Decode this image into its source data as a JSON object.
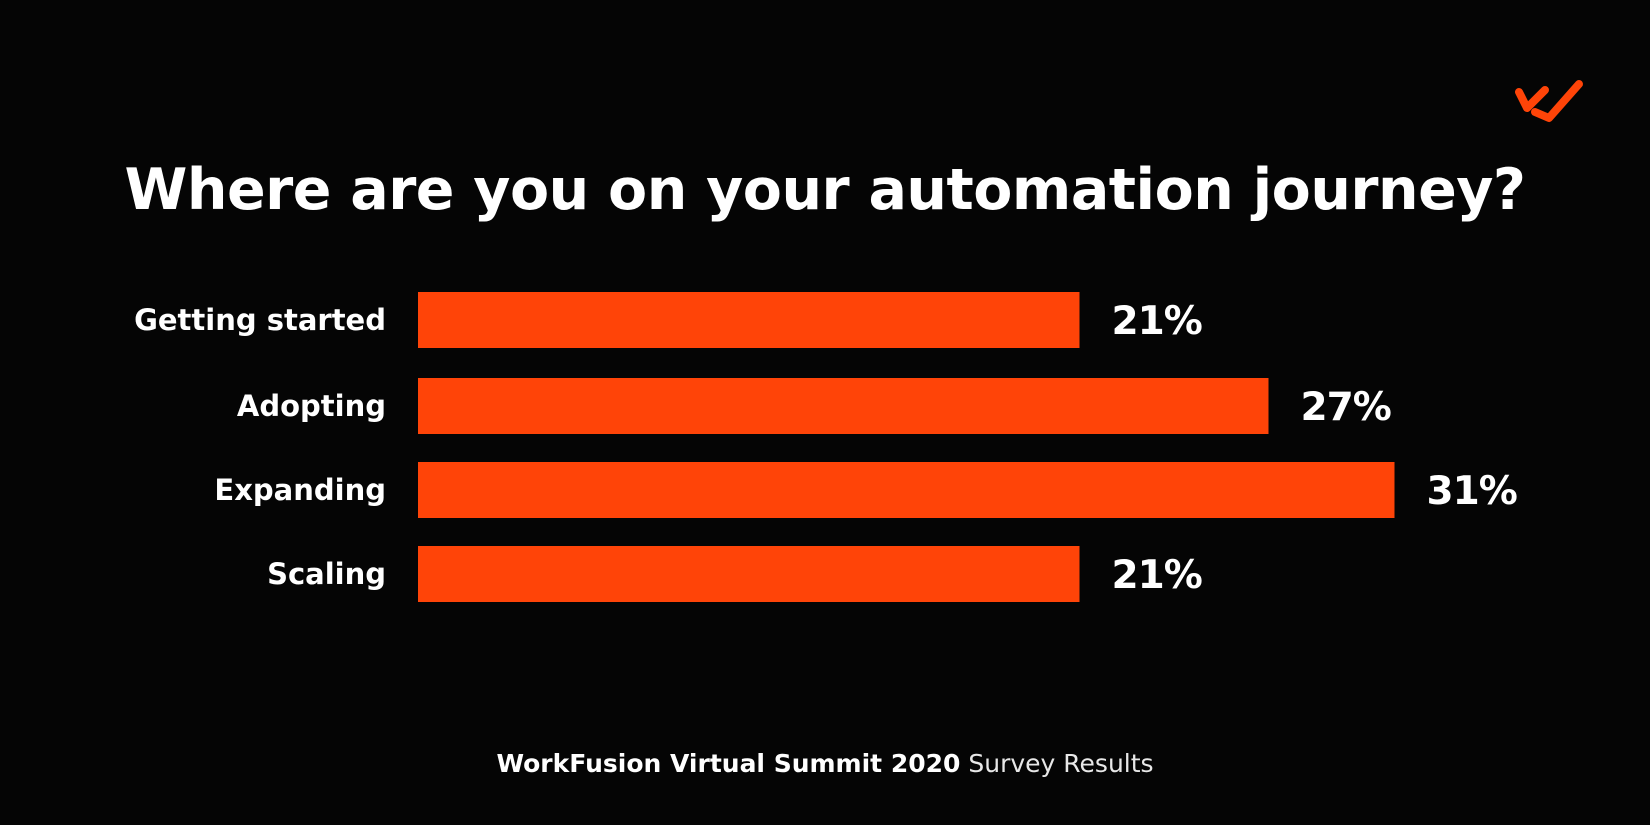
{
  "brand": {
    "logo_icon": "workfusion-logo-icon",
    "accent_color": "#ff4408"
  },
  "chart_data": {
    "type": "bar",
    "orientation": "horizontal",
    "title": "Where are you on your automation journey?",
    "categories": [
      "Getting started",
      "Adopting",
      "Expanding",
      "Scaling"
    ],
    "values": [
      21,
      27,
      31,
      21
    ],
    "value_labels": [
      "21%",
      "27%",
      "31%",
      "21%"
    ],
    "unit": "%",
    "bar_color": "#ff4408",
    "grid": false,
    "legend": "none"
  },
  "footer": {
    "event": "WorkFusion Virtual Summit 2020",
    "suffix": "Survey Results"
  }
}
